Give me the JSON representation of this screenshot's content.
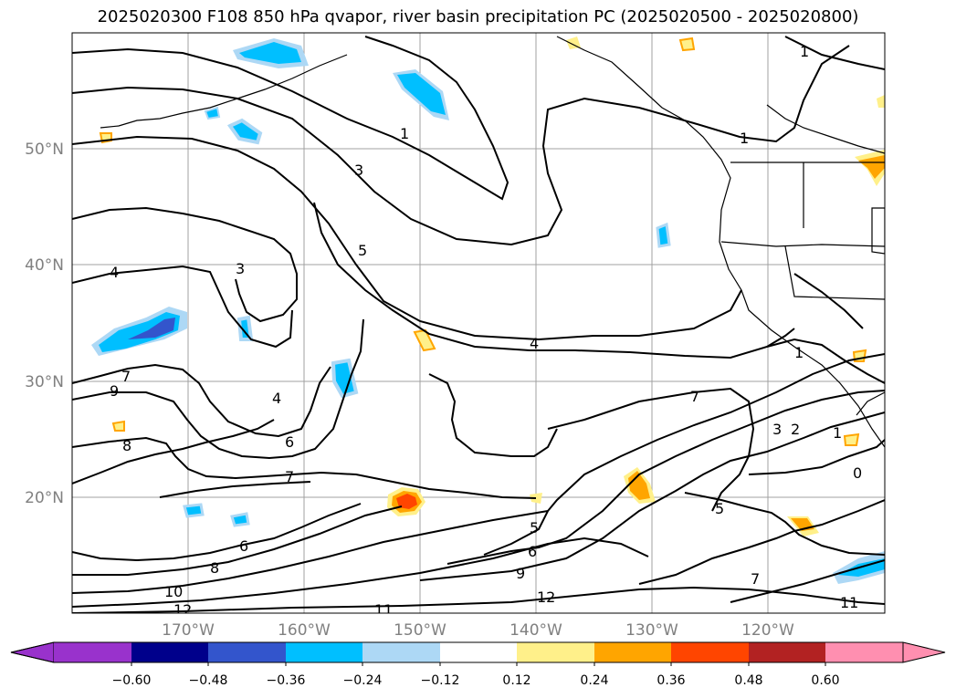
{
  "title": "2025020300 F108 850 hPa qvapor, river basin precipitation PC (2025020500 - 2025020800)",
  "map": {
    "lat_labels": [
      "50°N",
      "40°N",
      "30°N",
      "20°N"
    ],
    "lon_labels": [
      "170°W",
      "160°W",
      "150°W",
      "140°W",
      "130°W",
      "120°W"
    ],
    "contour_labels": [
      "1",
      "1",
      "1",
      "3",
      "3",
      "5",
      "4",
      "4",
      "4",
      "7",
      "9",
      "8",
      "6",
      "7",
      "6",
      "8",
      "10",
      "12",
      "11",
      "5",
      "6",
      "9",
      "12",
      "11",
      "7",
      "5",
      "3",
      "2",
      "1",
      "0",
      "1",
      "7"
    ]
  },
  "colorbar": {
    "tick_labels": [
      "−0.60",
      "−0.48",
      "−0.36",
      "−0.24",
      "−0.12",
      "0.12",
      "0.24",
      "0.36",
      "0.48",
      "0.60"
    ],
    "colors": [
      "#9932cc",
      "#00008b",
      "#3355cc",
      "#00bfff",
      "#add8f5",
      "#ffffff",
      "#fff08a",
      "#ffa500",
      "#ff4500",
      "#b22222",
      "#ff8fb0"
    ]
  }
}
